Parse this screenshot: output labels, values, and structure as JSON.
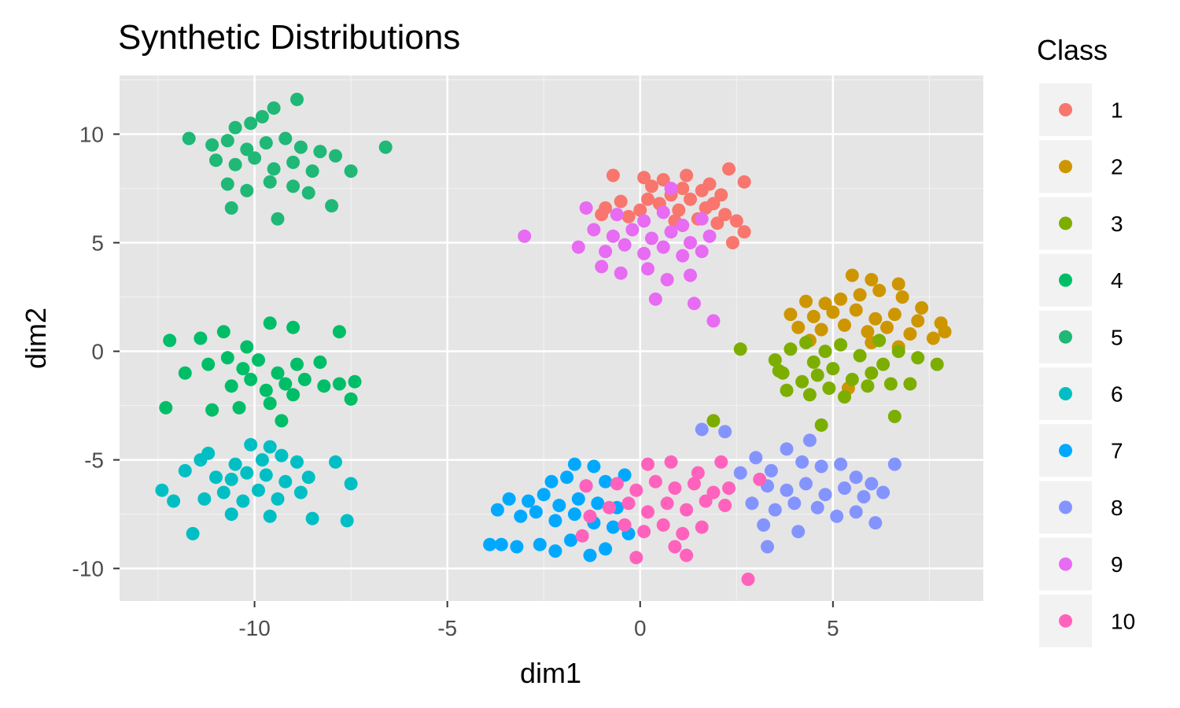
{
  "chart_data": {
    "type": "scatter",
    "title": "Synthetic Distributions",
    "xlabel": "dim1",
    "ylabel": "dim2",
    "xlim": [
      -13.5,
      8.9
    ],
    "ylim": [
      -11.5,
      12.7
    ],
    "x_ticks": [
      -10,
      -5,
      0,
      5
    ],
    "y_ticks": [
      -10,
      -5,
      0,
      5,
      10
    ],
    "x_tick_labels": [
      "-10",
      "-5",
      "0",
      "5"
    ],
    "y_tick_labels": [
      "-10",
      "-5",
      "0",
      "5",
      "10"
    ],
    "grid": true,
    "background": "#e5e5e5",
    "legend": {
      "title": "Class",
      "placement": "right"
    },
    "series": [
      {
        "name": "1",
        "color": "#F8766D",
        "points": [
          [
            -0.7,
            8.1
          ],
          [
            0.1,
            8.0
          ],
          [
            0.6,
            7.9
          ],
          [
            1.2,
            8.1
          ],
          [
            1.8,
            7.7
          ],
          [
            2.3,
            8.4
          ],
          [
            2.7,
            7.8
          ],
          [
            -0.9,
            6.6
          ],
          [
            -0.5,
            6.9
          ],
          [
            0.0,
            6.5
          ],
          [
            0.3,
            7.6
          ],
          [
            0.8,
            7.2
          ],
          [
            1.3,
            7.0
          ],
          [
            1.6,
            7.4
          ],
          [
            1.9,
            6.8
          ],
          [
            2.2,
            6.3
          ],
          [
            2.5,
            6.0
          ],
          [
            2.7,
            5.5
          ],
          [
            -0.3,
            6.2
          ],
          [
            0.5,
            6.8
          ],
          [
            1.0,
            6.5
          ],
          [
            1.5,
            6.1
          ],
          [
            2.0,
            5.9
          ],
          [
            2.4,
            5.0
          ],
          [
            -1.0,
            6.3
          ],
          [
            0.2,
            7.0
          ],
          [
            1.1,
            7.5
          ],
          [
            1.7,
            6.6
          ],
          [
            2.1,
            7.2
          ],
          [
            0.9,
            6.0
          ]
        ]
      },
      {
        "name": "2",
        "color": "#CD9600",
        "points": [
          [
            5.5,
            3.5
          ],
          [
            6.0,
            3.3
          ],
          [
            6.7,
            3.1
          ],
          [
            4.3,
            2.3
          ],
          [
            4.8,
            2.2
          ],
          [
            5.2,
            2.4
          ],
          [
            5.7,
            2.6
          ],
          [
            6.2,
            2.8
          ],
          [
            6.8,
            2.5
          ],
          [
            7.3,
            2.0
          ],
          [
            3.9,
            1.7
          ],
          [
            4.5,
            1.6
          ],
          [
            5.0,
            1.8
          ],
          [
            5.6,
            1.9
          ],
          [
            6.1,
            1.5
          ],
          [
            6.6,
            1.7
          ],
          [
            7.2,
            1.4
          ],
          [
            7.8,
            1.3
          ],
          [
            4.1,
            1.1
          ],
          [
            4.7,
            1.0
          ],
          [
            5.3,
            1.2
          ],
          [
            5.9,
            0.9
          ],
          [
            6.4,
            1.1
          ],
          [
            7.0,
            0.8
          ],
          [
            7.6,
            0.6
          ],
          [
            4.4,
            0.5
          ],
          [
            6.0,
            0.4
          ],
          [
            6.7,
            0.2
          ],
          [
            5.4,
            -1.7
          ],
          [
            7.9,
            0.9
          ]
        ]
      },
      {
        "name": "3",
        "color": "#7CAE00",
        "points": [
          [
            2.6,
            0.1
          ],
          [
            1.9,
            -3.2
          ],
          [
            4.7,
            -3.4
          ],
          [
            6.6,
            -3.0
          ],
          [
            3.5,
            -0.4
          ],
          [
            3.9,
            0.1
          ],
          [
            4.3,
            0.4
          ],
          [
            4.8,
            0.0
          ],
          [
            5.2,
            0.3
          ],
          [
            5.7,
            -0.2
          ],
          [
            6.2,
            0.5
          ],
          [
            6.7,
            0.0
          ],
          [
            7.2,
            -0.3
          ],
          [
            7.7,
            -0.6
          ],
          [
            3.7,
            -1.0
          ],
          [
            4.2,
            -1.4
          ],
          [
            4.6,
            -1.1
          ],
          [
            5.0,
            -0.8
          ],
          [
            5.5,
            -1.3
          ],
          [
            6.0,
            -1.0
          ],
          [
            6.5,
            -1.5
          ],
          [
            7.0,
            -1.5
          ],
          [
            3.8,
            -1.8
          ],
          [
            4.4,
            -2.0
          ],
          [
            4.9,
            -1.7
          ],
          [
            5.3,
            -2.1
          ],
          [
            5.9,
            -1.6
          ],
          [
            6.3,
            -0.6
          ],
          [
            3.6,
            -0.9
          ],
          [
            4.5,
            -0.5
          ]
        ]
      },
      {
        "name": "4",
        "color": "#00BE67",
        "points": [
          [
            -12.2,
            0.5
          ],
          [
            -11.4,
            0.6
          ],
          [
            -10.8,
            0.9
          ],
          [
            -10.2,
            0.2
          ],
          [
            -9.6,
            1.3
          ],
          [
            -9.0,
            1.1
          ],
          [
            -7.8,
            0.9
          ],
          [
            -11.8,
            -1.0
          ],
          [
            -11.2,
            -0.6
          ],
          [
            -10.7,
            -0.3
          ],
          [
            -10.3,
            -0.8
          ],
          [
            -9.9,
            -0.4
          ],
          [
            -9.4,
            -1.0
          ],
          [
            -8.9,
            -0.6
          ],
          [
            -8.3,
            -0.5
          ],
          [
            -10.6,
            -1.6
          ],
          [
            -10.1,
            -1.3
          ],
          [
            -9.7,
            -1.8
          ],
          [
            -9.2,
            -1.5
          ],
          [
            -8.7,
            -1.3
          ],
          [
            -8.2,
            -1.6
          ],
          [
            -7.8,
            -1.5
          ],
          [
            -7.4,
            -1.4
          ],
          [
            -12.3,
            -2.6
          ],
          [
            -11.1,
            -2.7
          ],
          [
            -10.4,
            -2.6
          ],
          [
            -9.6,
            -2.4
          ],
          [
            -9.0,
            -2.0
          ],
          [
            -9.3,
            -3.2
          ],
          [
            -7.5,
            -2.2
          ]
        ]
      },
      {
        "name": "5",
        "color": "#1FB876",
        "points": [
          [
            -9.5,
            11.2
          ],
          [
            -8.9,
            11.6
          ],
          [
            -10.5,
            10.3
          ],
          [
            -10.1,
            10.5
          ],
          [
            -9.8,
            10.8
          ],
          [
            -11.7,
            9.8
          ],
          [
            -11.1,
            9.5
          ],
          [
            -10.7,
            9.7
          ],
          [
            -10.2,
            9.3
          ],
          [
            -9.7,
            9.6
          ],
          [
            -9.2,
            9.8
          ],
          [
            -8.8,
            9.4
          ],
          [
            -8.3,
            9.2
          ],
          [
            -7.9,
            9.0
          ],
          [
            -6.6,
            9.4
          ],
          [
            -11.0,
            8.8
          ],
          [
            -10.5,
            8.6
          ],
          [
            -10.0,
            8.9
          ],
          [
            -9.5,
            8.4
          ],
          [
            -9.0,
            8.7
          ],
          [
            -8.5,
            8.3
          ],
          [
            -7.5,
            8.3
          ],
          [
            -10.7,
            7.7
          ],
          [
            -10.2,
            7.4
          ],
          [
            -9.6,
            7.8
          ],
          [
            -9.0,
            7.6
          ],
          [
            -8.6,
            7.3
          ],
          [
            -10.6,
            6.6
          ],
          [
            -9.4,
            6.1
          ],
          [
            -8.0,
            6.7
          ]
        ]
      },
      {
        "name": "6",
        "color": "#00BFC4",
        "points": [
          [
            -10.1,
            -4.3
          ],
          [
            -9.6,
            -4.4
          ],
          [
            -11.2,
            -4.7
          ],
          [
            -9.3,
            -4.8
          ],
          [
            -11.4,
            -5.0
          ],
          [
            -10.5,
            -5.2
          ],
          [
            -9.8,
            -5.0
          ],
          [
            -8.9,
            -5.1
          ],
          [
            -7.9,
            -5.1
          ],
          [
            -11.8,
            -5.5
          ],
          [
            -11.0,
            -5.8
          ],
          [
            -10.6,
            -5.9
          ],
          [
            -10.2,
            -5.6
          ],
          [
            -9.7,
            -5.7
          ],
          [
            -9.2,
            -6.0
          ],
          [
            -8.6,
            -5.8
          ],
          [
            -7.5,
            -6.1
          ],
          [
            -12.4,
            -6.4
          ],
          [
            -11.3,
            -6.8
          ],
          [
            -10.8,
            -6.5
          ],
          [
            -10.3,
            -6.9
          ],
          [
            -9.9,
            -6.4
          ],
          [
            -9.4,
            -6.8
          ],
          [
            -8.8,
            -6.5
          ],
          [
            -12.1,
            -6.9
          ],
          [
            -10.6,
            -7.5
          ],
          [
            -9.6,
            -7.6
          ],
          [
            -8.5,
            -7.7
          ],
          [
            -7.6,
            -7.8
          ],
          [
            -11.6,
            -8.4
          ]
        ]
      },
      {
        "name": "7",
        "color": "#00A9FF",
        "points": [
          [
            -1.7,
            -5.2
          ],
          [
            -1.2,
            -5.3
          ],
          [
            -2.3,
            -6.0
          ],
          [
            -1.9,
            -5.8
          ],
          [
            -1.4,
            -6.2
          ],
          [
            -0.9,
            -6.0
          ],
          [
            -0.4,
            -5.7
          ],
          [
            -3.4,
            -6.8
          ],
          [
            -2.9,
            -6.9
          ],
          [
            -2.5,
            -6.6
          ],
          [
            -2.1,
            -7.1
          ],
          [
            -1.6,
            -6.8
          ],
          [
            -1.1,
            -7.0
          ],
          [
            -0.6,
            -7.2
          ],
          [
            -3.7,
            -7.3
          ],
          [
            -3.1,
            -7.6
          ],
          [
            -2.7,
            -7.4
          ],
          [
            -2.2,
            -7.8
          ],
          [
            -1.7,
            -7.5
          ],
          [
            -1.2,
            -7.9
          ],
          [
            -0.7,
            -8.1
          ],
          [
            -3.9,
            -8.9
          ],
          [
            -3.6,
            -8.9
          ],
          [
            -3.2,
            -9.0
          ],
          [
            -2.6,
            -8.9
          ],
          [
            -2.2,
            -9.2
          ],
          [
            -1.8,
            -8.7
          ],
          [
            -1.3,
            -9.4
          ],
          [
            -0.9,
            -9.1
          ],
          [
            -0.3,
            -8.4
          ]
        ]
      },
      {
        "name": "8",
        "color": "#8494FF",
        "points": [
          [
            1.6,
            -3.6
          ],
          [
            2.2,
            -3.7
          ],
          [
            3.0,
            -4.9
          ],
          [
            3.8,
            -4.5
          ],
          [
            4.4,
            -4.1
          ],
          [
            4.2,
            -5.1
          ],
          [
            4.7,
            -5.3
          ],
          [
            3.4,
            -5.5
          ],
          [
            2.6,
            -5.6
          ],
          [
            5.2,
            -5.2
          ],
          [
            5.6,
            -5.8
          ],
          [
            6.0,
            -6.1
          ],
          [
            3.3,
            -6.2
          ],
          [
            3.8,
            -6.4
          ],
          [
            4.3,
            -6.1
          ],
          [
            4.8,
            -6.6
          ],
          [
            5.3,
            -6.3
          ],
          [
            5.8,
            -6.7
          ],
          [
            6.3,
            -6.5
          ],
          [
            2.9,
            -7.0
          ],
          [
            3.5,
            -7.3
          ],
          [
            4.0,
            -7.0
          ],
          [
            4.6,
            -7.2
          ],
          [
            5.1,
            -7.6
          ],
          [
            5.6,
            -7.4
          ],
          [
            6.1,
            -7.9
          ],
          [
            3.2,
            -8.0
          ],
          [
            4.1,
            -8.3
          ],
          [
            6.6,
            -5.2
          ],
          [
            3.3,
            -9.0
          ]
        ]
      },
      {
        "name": "9",
        "color": "#E76BF3",
        "points": [
          [
            0.8,
            7.5
          ],
          [
            -1.4,
            6.6
          ],
          [
            -0.6,
            6.3
          ],
          [
            0.1,
            6.0
          ],
          [
            0.6,
            6.4
          ],
          [
            1.1,
            5.8
          ],
          [
            1.6,
            6.1
          ],
          [
            -1.2,
            5.6
          ],
          [
            -0.7,
            5.3
          ],
          [
            -0.2,
            5.6
          ],
          [
            0.3,
            5.2
          ],
          [
            0.8,
            5.5
          ],
          [
            1.3,
            5.0
          ],
          [
            1.8,
            5.3
          ],
          [
            -1.6,
            4.8
          ],
          [
            -0.9,
            4.6
          ],
          [
            -0.4,
            4.9
          ],
          [
            0.1,
            4.5
          ],
          [
            0.6,
            4.8
          ],
          [
            1.1,
            4.4
          ],
          [
            1.6,
            4.6
          ],
          [
            -1.0,
            3.9
          ],
          [
            -0.5,
            3.6
          ],
          [
            0.2,
            3.8
          ],
          [
            0.7,
            3.3
          ],
          [
            1.3,
            3.5
          ],
          [
            0.4,
            2.4
          ],
          [
            1.4,
            2.2
          ],
          [
            1.9,
            1.4
          ],
          [
            -3.0,
            5.3
          ]
        ]
      },
      {
        "name": "10",
        "color": "#FF62BC",
        "points": [
          [
            0.2,
            -5.2
          ],
          [
            0.8,
            -5.1
          ],
          [
            2.1,
            -5.1
          ],
          [
            1.5,
            -5.6
          ],
          [
            -1.4,
            -6.2
          ],
          [
            -0.6,
            -6.1
          ],
          [
            -0.1,
            -6.4
          ],
          [
            0.4,
            -6.0
          ],
          [
            0.9,
            -6.3
          ],
          [
            1.4,
            -6.1
          ],
          [
            1.9,
            -6.5
          ],
          [
            2.3,
            -6.3
          ],
          [
            3.1,
            -5.9
          ],
          [
            -1.3,
            -7.6
          ],
          [
            -0.8,
            -7.2
          ],
          [
            -0.3,
            -7.0
          ],
          [
            0.2,
            -7.4
          ],
          [
            0.7,
            -7.0
          ],
          [
            1.2,
            -7.3
          ],
          [
            1.7,
            -6.9
          ],
          [
            2.2,
            -7.1
          ],
          [
            -0.4,
            -8.0
          ],
          [
            0.1,
            -8.3
          ],
          [
            0.6,
            -8.0
          ],
          [
            1.1,
            -8.4
          ],
          [
            1.6,
            -8.1
          ],
          [
            -1.5,
            -8.5
          ],
          [
            0.9,
            -9.0
          ],
          [
            1.2,
            -9.4
          ],
          [
            -0.1,
            -9.5
          ],
          [
            2.8,
            -10.5
          ]
        ]
      }
    ]
  }
}
